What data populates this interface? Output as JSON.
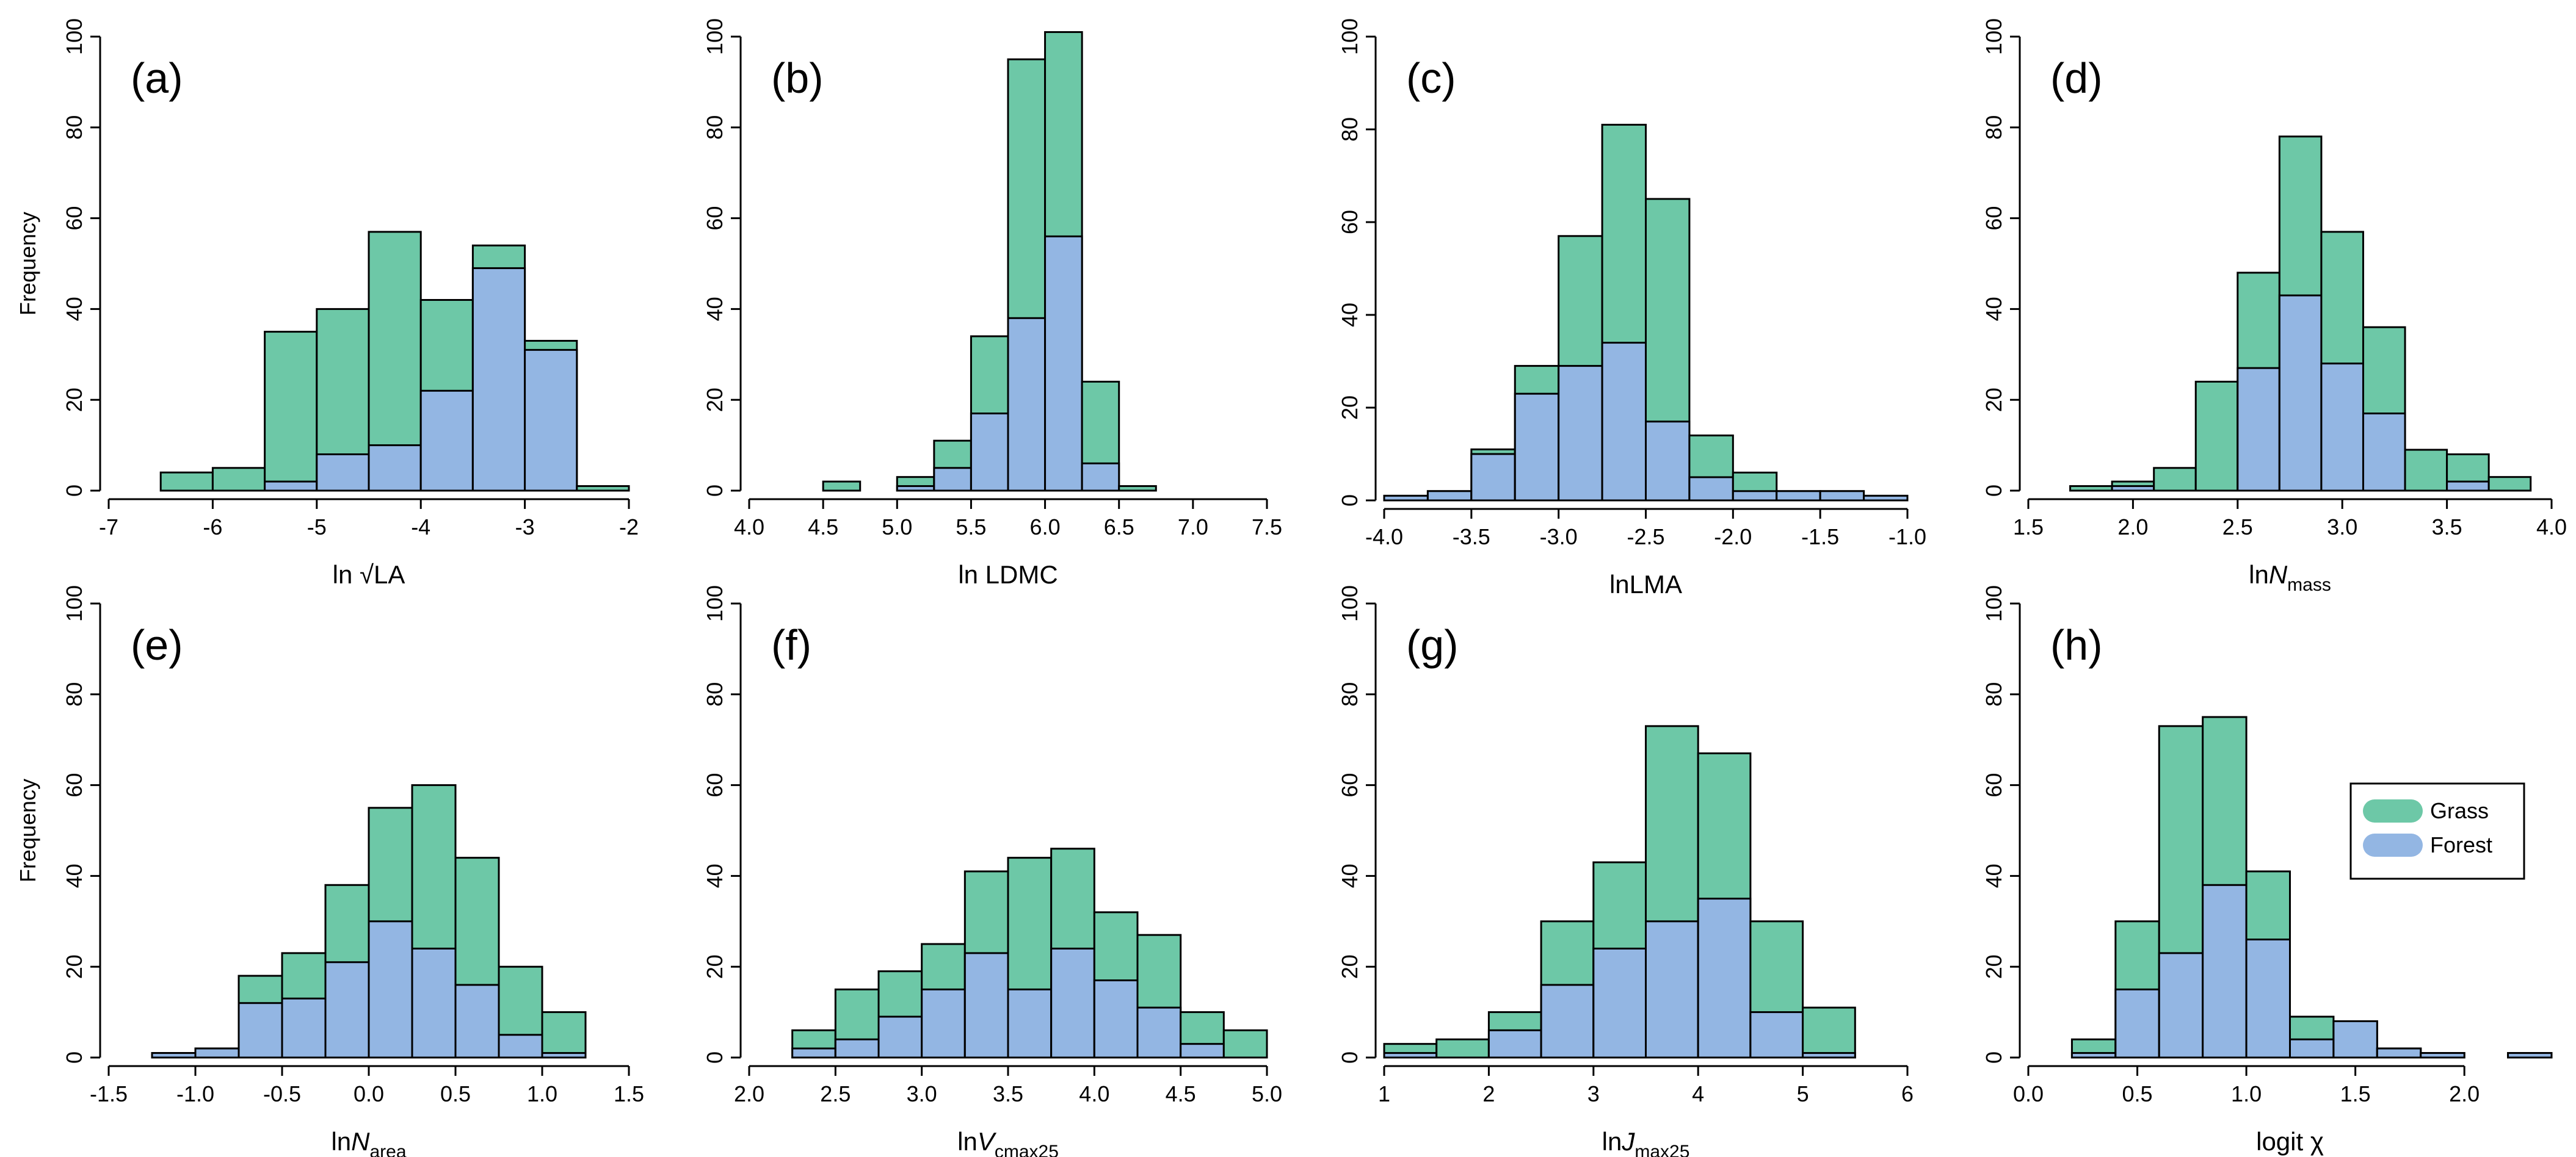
{
  "colors": {
    "grass": "#6dc8a7",
    "forest": "#93b6e3"
  },
  "legend": {
    "grass": "Grass",
    "forest": "Forest"
  },
  "chart_data": [
    {
      "id": "a",
      "type": "bar",
      "panel_label": "(a)",
      "xlabel_parts": [
        "ln √LA"
      ],
      "ylabel": "Frequency",
      "xlim": [
        -7,
        -2
      ],
      "ylim": [
        0,
        100
      ],
      "xticks": [
        -7,
        -6,
        -5,
        -4,
        -3,
        -2
      ],
      "xtick_labels": [
        "-7",
        "-6",
        "-5",
        "-4",
        "-3",
        "-2"
      ],
      "yticks": [
        0,
        20,
        40,
        60,
        80,
        100
      ],
      "ytick_labels": [
        "0",
        "20",
        "40",
        "60",
        "80",
        "100"
      ],
      "bins": [
        {
          "x0": -6.5,
          "x1": -6.0,
          "total": 4,
          "forest": 0
        },
        {
          "x0": -6.0,
          "x1": -5.5,
          "total": 5,
          "forest": 0
        },
        {
          "x0": -5.5,
          "x1": -5.0,
          "total": 35,
          "forest": 2
        },
        {
          "x0": -5.0,
          "x1": -4.5,
          "total": 40,
          "forest": 8
        },
        {
          "x0": -4.5,
          "x1": -4.0,
          "total": 57,
          "forest": 10
        },
        {
          "x0": -4.0,
          "x1": -3.5,
          "total": 42,
          "forest": 22
        },
        {
          "x0": -3.5,
          "x1": -3.0,
          "total": 54,
          "forest": 49
        },
        {
          "x0": -3.0,
          "x1": -2.5,
          "total": 33,
          "forest": 31
        },
        {
          "x0": -2.5,
          "x1": -2.0,
          "total": 1,
          "forest": 0
        }
      ]
    },
    {
      "id": "b",
      "type": "bar",
      "panel_label": "(b)",
      "xlabel_parts": [
        "ln LDMC"
      ],
      "ylabel": "",
      "xlim": [
        4.0,
        7.5
      ],
      "ylim": [
        0,
        100
      ],
      "xticks": [
        4.0,
        4.5,
        5.0,
        5.5,
        6.0,
        6.5,
        7.0,
        7.5
      ],
      "xtick_labels": [
        "4.0",
        "4.5",
        "5.0",
        "5.5",
        "6.0",
        "6.5",
        "7.0",
        "7.5"
      ],
      "yticks": [
        0,
        20,
        40,
        60,
        80,
        100
      ],
      "ytick_labels": [
        "0",
        "20",
        "40",
        "60",
        "80",
        "100"
      ],
      "bins": [
        {
          "x0": 4.5,
          "x1": 4.75,
          "total": 2,
          "forest": 0
        },
        {
          "x0": 5.0,
          "x1": 5.25,
          "total": 3,
          "forest": 1
        },
        {
          "x0": 5.25,
          "x1": 5.5,
          "total": 11,
          "forest": 5
        },
        {
          "x0": 5.5,
          "x1": 5.75,
          "total": 34,
          "forest": 17
        },
        {
          "x0": 5.75,
          "x1": 6.0,
          "total": 95,
          "forest": 38
        },
        {
          "x0": 6.0,
          "x1": 6.25,
          "total": 101,
          "forest": 56
        },
        {
          "x0": 6.25,
          "x1": 6.5,
          "total": 24,
          "forest": 6
        },
        {
          "x0": 6.5,
          "x1": 6.75,
          "total": 1,
          "forest": 0
        }
      ]
    },
    {
      "id": "c",
      "type": "bar",
      "panel_label": "(c)",
      "xlabel_parts": [
        "lnLMA"
      ],
      "ylabel": "",
      "xlim": [
        -4.0,
        -1.0
      ],
      "ylim": [
        0,
        100
      ],
      "xticks": [
        -4.0,
        -3.5,
        -3.0,
        -2.5,
        -2.0,
        -1.5,
        -1.0
      ],
      "xtick_labels": [
        "-4.0",
        "-3.5",
        "-3.0",
        "-2.5",
        "-2.0",
        "-1.5",
        "-1.0"
      ],
      "yticks": [
        0,
        20,
        40,
        60,
        80,
        100
      ],
      "ytick_labels": [
        "0",
        "20",
        "40",
        "60",
        "80",
        "100"
      ],
      "bins": [
        {
          "x0": -4.0,
          "x1": -3.75,
          "total": 1,
          "forest": 1
        },
        {
          "x0": -3.75,
          "x1": -3.5,
          "total": 2,
          "forest": 2
        },
        {
          "x0": -3.5,
          "x1": -3.25,
          "total": 11,
          "forest": 10
        },
        {
          "x0": -3.25,
          "x1": -3.0,
          "total": 29,
          "forest": 23
        },
        {
          "x0": -3.0,
          "x1": -2.75,
          "total": 57,
          "forest": 29
        },
        {
          "x0": -2.75,
          "x1": -2.5,
          "total": 81,
          "forest": 34
        },
        {
          "x0": -2.5,
          "x1": -2.25,
          "total": 65,
          "forest": 17
        },
        {
          "x0": -2.25,
          "x1": -2.0,
          "total": 14,
          "forest": 5
        },
        {
          "x0": -2.0,
          "x1": -1.75,
          "total": 6,
          "forest": 2
        },
        {
          "x0": -1.75,
          "x1": -1.5,
          "total": 2,
          "forest": 2
        },
        {
          "x0": -1.5,
          "x1": -1.25,
          "total": 2,
          "forest": 2
        },
        {
          "x0": -1.25,
          "x1": -1.0,
          "total": 1,
          "forest": 1
        }
      ]
    },
    {
      "id": "d",
      "type": "bar",
      "panel_label": "(d)",
      "xlabel_parts": [
        "ln",
        "N",
        "mass"
      ],
      "ylabel": "",
      "xlim": [
        1.5,
        4.0
      ],
      "ylim": [
        0,
        100
      ],
      "xticks": [
        1.5,
        2.0,
        2.5,
        3.0,
        3.5,
        4.0
      ],
      "xtick_labels": [
        "1.5",
        "2.0",
        "2.5",
        "3.0",
        "3.5",
        "4.0"
      ],
      "yticks": [
        0,
        20,
        40,
        60,
        80,
        100
      ],
      "ytick_labels": [
        "0",
        "20",
        "40",
        "60",
        "80",
        "100"
      ],
      "bins": [
        {
          "x0": 1.7,
          "x1": 1.9,
          "total": 1,
          "forest": 0
        },
        {
          "x0": 1.9,
          "x1": 2.1,
          "total": 2,
          "forest": 1
        },
        {
          "x0": 2.1,
          "x1": 2.3,
          "total": 5,
          "forest": 0
        },
        {
          "x0": 2.3,
          "x1": 2.5,
          "total": 24,
          "forest": 0
        },
        {
          "x0": 2.5,
          "x1": 2.7,
          "total": 48,
          "forest": 27
        },
        {
          "x0": 2.7,
          "x1": 2.9,
          "total": 78,
          "forest": 43
        },
        {
          "x0": 2.9,
          "x1": 3.1,
          "total": 57,
          "forest": 28
        },
        {
          "x0": 3.1,
          "x1": 3.3,
          "total": 36,
          "forest": 17
        },
        {
          "x0": 3.3,
          "x1": 3.5,
          "total": 9,
          "forest": 0
        },
        {
          "x0": 3.5,
          "x1": 3.7,
          "total": 8,
          "forest": 2
        },
        {
          "x0": 3.7,
          "x1": 3.9,
          "total": 3,
          "forest": 0
        }
      ]
    },
    {
      "id": "e",
      "type": "bar",
      "panel_label": "(e)",
      "xlabel_parts": [
        "ln",
        "N",
        "area"
      ],
      "ylabel": "Frequency",
      "xlim": [
        -1.5,
        1.5
      ],
      "ylim": [
        0,
        100
      ],
      "xticks": [
        -1.5,
        -1.0,
        -0.5,
        0.0,
        0.5,
        1.0,
        1.5
      ],
      "xtick_labels": [
        "-1.5",
        "-1.0",
        "-0.5",
        "0.0",
        "0.5",
        "1.0",
        "1.5"
      ],
      "yticks": [
        0,
        20,
        40,
        60,
        80,
        100
      ],
      "ytick_labels": [
        "0",
        "20",
        "40",
        "60",
        "80",
        "100"
      ],
      "bins": [
        {
          "x0": -1.25,
          "x1": -1.0,
          "total": 1,
          "forest": 1
        },
        {
          "x0": -1.0,
          "x1": -0.75,
          "total": 2,
          "forest": 2
        },
        {
          "x0": -0.75,
          "x1": -0.5,
          "total": 18,
          "forest": 12
        },
        {
          "x0": -0.5,
          "x1": -0.25,
          "total": 23,
          "forest": 13
        },
        {
          "x0": -0.25,
          "x1": 0.0,
          "total": 38,
          "forest": 21
        },
        {
          "x0": 0.0,
          "x1": 0.25,
          "total": 55,
          "forest": 30
        },
        {
          "x0": 0.25,
          "x1": 0.5,
          "total": 60,
          "forest": 24
        },
        {
          "x0": 0.5,
          "x1": 0.75,
          "total": 44,
          "forest": 16
        },
        {
          "x0": 0.75,
          "x1": 1.0,
          "total": 20,
          "forest": 5
        },
        {
          "x0": 1.0,
          "x1": 1.25,
          "total": 10,
          "forest": 1
        }
      ]
    },
    {
      "id": "f",
      "type": "bar",
      "panel_label": "(f)",
      "xlabel_parts": [
        "ln",
        "V",
        "cmax25"
      ],
      "ylabel": "",
      "xlim": [
        2.0,
        5.0
      ],
      "ylim": [
        0,
        100
      ],
      "xticks": [
        2.0,
        2.5,
        3.0,
        3.5,
        4.0,
        4.5,
        5.0
      ],
      "xtick_labels": [
        "2.0",
        "2.5",
        "3.0",
        "3.5",
        "4.0",
        "4.5",
        "5.0"
      ],
      "yticks": [
        0,
        20,
        40,
        60,
        80,
        100
      ],
      "ytick_labels": [
        "0",
        "20",
        "40",
        "60",
        "80",
        "100"
      ],
      "bins": [
        {
          "x0": 2.25,
          "x1": 2.5,
          "total": 6,
          "forest": 2
        },
        {
          "x0": 2.5,
          "x1": 2.75,
          "total": 15,
          "forest": 4
        },
        {
          "x0": 2.75,
          "x1": 3.0,
          "total": 19,
          "forest": 9
        },
        {
          "x0": 3.0,
          "x1": 3.25,
          "total": 25,
          "forest": 15
        },
        {
          "x0": 3.25,
          "x1": 3.5,
          "total": 41,
          "forest": 23
        },
        {
          "x0": 3.5,
          "x1": 3.75,
          "total": 44,
          "forest": 15
        },
        {
          "x0": 3.75,
          "x1": 4.0,
          "total": 46,
          "forest": 24
        },
        {
          "x0": 4.0,
          "x1": 4.25,
          "total": 32,
          "forest": 17
        },
        {
          "x0": 4.25,
          "x1": 4.5,
          "total": 27,
          "forest": 11
        },
        {
          "x0": 4.5,
          "x1": 4.75,
          "total": 10,
          "forest": 3
        },
        {
          "x0": 4.75,
          "x1": 5.0,
          "total": 6,
          "forest": 0
        }
      ]
    },
    {
      "id": "g",
      "type": "bar",
      "panel_label": "(g)",
      "xlabel_parts": [
        "ln",
        "J",
        "max25"
      ],
      "ylabel": "",
      "xlim": [
        1,
        6
      ],
      "ylim": [
        0,
        100
      ],
      "xticks": [
        1,
        2,
        3,
        4,
        5,
        6
      ],
      "xtick_labels": [
        "1",
        "2",
        "3",
        "4",
        "5",
        "6"
      ],
      "yticks": [
        0,
        20,
        40,
        60,
        80,
        100
      ],
      "ytick_labels": [
        "0",
        "20",
        "40",
        "60",
        "80",
        "100"
      ],
      "bins": [
        {
          "x0": 1.0,
          "x1": 1.5,
          "total": 3,
          "forest": 1
        },
        {
          "x0": 1.5,
          "x1": 2.0,
          "total": 4,
          "forest": 0
        },
        {
          "x0": 2.0,
          "x1": 2.5,
          "total": 10,
          "forest": 6
        },
        {
          "x0": 2.5,
          "x1": 3.0,
          "total": 30,
          "forest": 16
        },
        {
          "x0": 3.0,
          "x1": 3.5,
          "total": 43,
          "forest": 24
        },
        {
          "x0": 3.5,
          "x1": 4.0,
          "total": 73,
          "forest": 30
        },
        {
          "x0": 4.0,
          "x1": 4.5,
          "total": 67,
          "forest": 35
        },
        {
          "x0": 4.5,
          "x1": 5.0,
          "total": 30,
          "forest": 10
        },
        {
          "x0": 5.0,
          "x1": 5.5,
          "total": 11,
          "forest": 1
        }
      ]
    },
    {
      "id": "h",
      "type": "bar",
      "panel_label": "(h)",
      "xlabel_parts": [
        "logit χ"
      ],
      "ylabel": "",
      "xlim": [
        0.0,
        2.4
      ],
      "ylim": [
        0,
        100
      ],
      "xticks": [
        0.0,
        0.5,
        1.0,
        1.5,
        2.0
      ],
      "xtick_labels": [
        "0.0",
        "0.5",
        "1.0",
        "1.5",
        "2.0"
      ],
      "yticks": [
        0,
        20,
        40,
        60,
        80,
        100
      ],
      "ytick_labels": [
        "0",
        "20",
        "40",
        "60",
        "80",
        "100"
      ],
      "legend_position": "right",
      "bins": [
        {
          "x0": 0.2,
          "x1": 0.4,
          "total": 4,
          "forest": 1
        },
        {
          "x0": 0.4,
          "x1": 0.6,
          "total": 30,
          "forest": 15
        },
        {
          "x0": 0.6,
          "x1": 0.8,
          "total": 73,
          "forest": 23
        },
        {
          "x0": 0.8,
          "x1": 1.0,
          "total": 75,
          "forest": 38
        },
        {
          "x0": 1.0,
          "x1": 1.2,
          "total": 41,
          "forest": 26
        },
        {
          "x0": 1.2,
          "x1": 1.4,
          "total": 9,
          "forest": 4
        },
        {
          "x0": 1.4,
          "x1": 1.6,
          "total": 8,
          "forest": 8
        },
        {
          "x0": 1.6,
          "x1": 1.8,
          "total": 2,
          "forest": 2
        },
        {
          "x0": 1.8,
          "x1": 2.0,
          "total": 1,
          "forest": 1
        },
        {
          "x0": 2.2,
          "x1": 2.4,
          "total": 1,
          "forest": 1
        }
      ]
    }
  ]
}
